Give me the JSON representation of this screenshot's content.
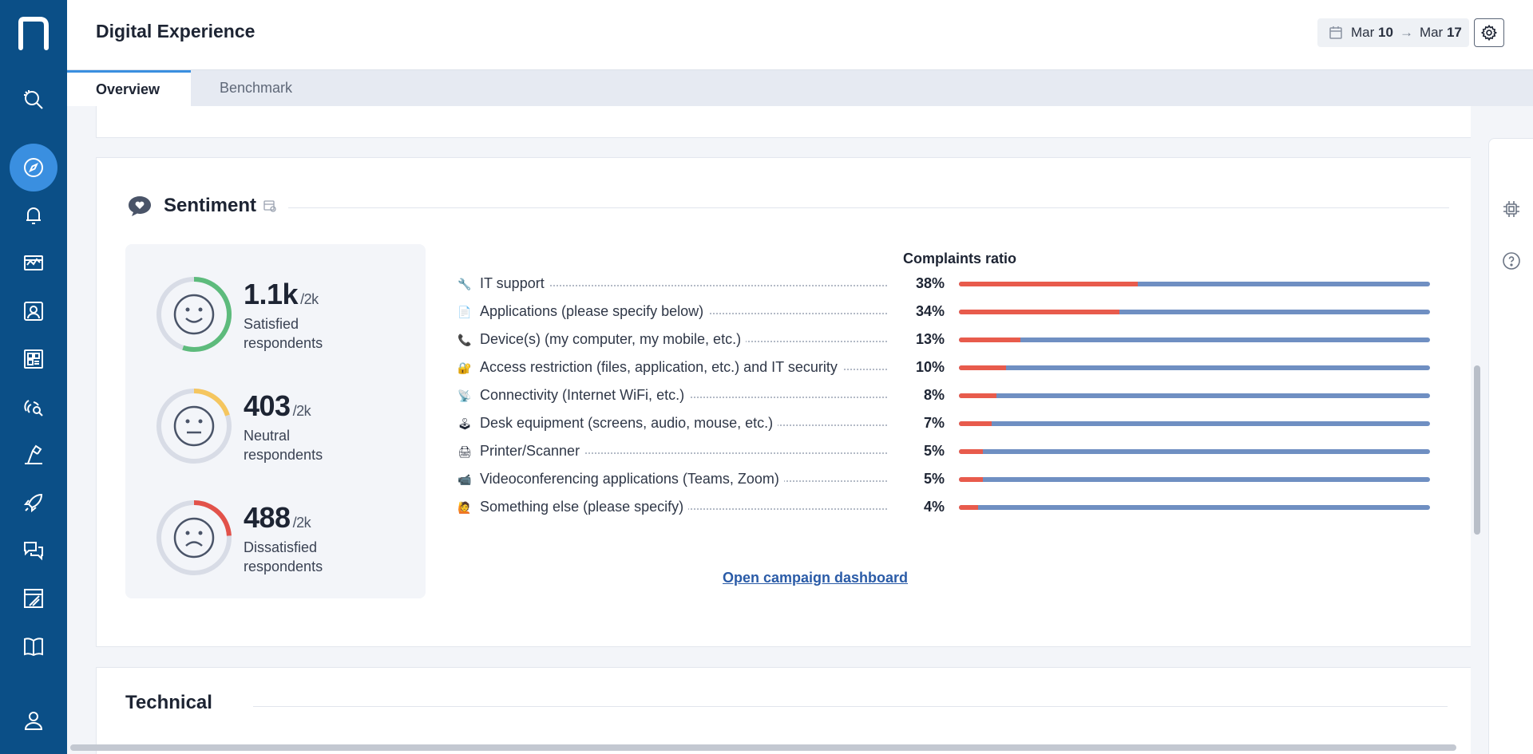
{
  "header": {
    "title": "Digital Experience",
    "date_from_month": "Mar",
    "date_from_day": "10",
    "date_to_month": "Mar",
    "date_to_day": "17"
  },
  "tabs": [
    {
      "label": "Overview",
      "active": true
    },
    {
      "label": "Benchmark",
      "active": false
    }
  ],
  "nav": {
    "items": [
      "search-insights-icon",
      "compass-icon",
      "bell-icon",
      "monitor-chart-icon",
      "users-icon",
      "dashboard-icon",
      "fingerprint-search-icon",
      "remote-action-icon",
      "rocket-icon",
      "chat-icon",
      "design-icon",
      "book-icon",
      "user-icon"
    ],
    "active": "compass-icon"
  },
  "sentiment": {
    "title": "Sentiment",
    "stats": [
      {
        "value": "1.1k",
        "total": "/2k",
        "label": "Satisfied respondents",
        "fraction": 0.55,
        "color": "#5dbb7c"
      },
      {
        "value": "403",
        "total": "/2k",
        "label": "Neutral respondents",
        "fraction": 0.2,
        "color": "#f5c65f"
      },
      {
        "value": "488",
        "total": "/2k",
        "label": "Dissatisfied respondents",
        "fraction": 0.24,
        "color": "#e2524a"
      }
    ],
    "complaints_title": "Complaints ratio",
    "complaints": [
      {
        "icon": "wrench-icon",
        "glyph": "🔧",
        "label": "IT support",
        "pct": "38%",
        "value": 38
      },
      {
        "icon": "document-icon",
        "glyph": "📄",
        "label": "Applications (please specify below)",
        "pct": "34%",
        "value": 34
      },
      {
        "icon": "phone-icon",
        "glyph": "📞",
        "label": "Device(s) (my computer, my mobile, etc.)",
        "pct": "13%",
        "value": 13
      },
      {
        "icon": "lock-icon",
        "glyph": "🔐",
        "label": "Access restriction (files, application, etc.) and IT security",
        "pct": "10%",
        "value": 10
      },
      {
        "icon": "satellite-icon",
        "glyph": "📡",
        "label": "Connectivity (Internet WiFi, etc.)",
        "pct": "8%",
        "value": 8
      },
      {
        "icon": "joystick-icon",
        "glyph": "🕹",
        "label": "Desk equipment (screens, audio, mouse, etc.)",
        "pct": "7%",
        "value": 7
      },
      {
        "icon": "printer-icon",
        "glyph": "🖨",
        "label": "Printer/Scanner",
        "pct": "5%",
        "value": 5
      },
      {
        "icon": "camera-icon",
        "glyph": "📹",
        "label": "Videoconferencing applications (Teams, Zoom)",
        "pct": "5%",
        "value": 5
      },
      {
        "icon": "hands-icon",
        "glyph": "🙋",
        "label": "Something else (please specify)",
        "pct": "4%",
        "value": 4
      }
    ],
    "link_label": "Open campaign dashboard"
  },
  "technical": {
    "title": "Technical"
  },
  "colors": {
    "nav_bg": "#0b4f87",
    "accent": "#3a8fe0",
    "bar_red": "#e85b4c",
    "bar_blue": "#6f8fc2"
  }
}
